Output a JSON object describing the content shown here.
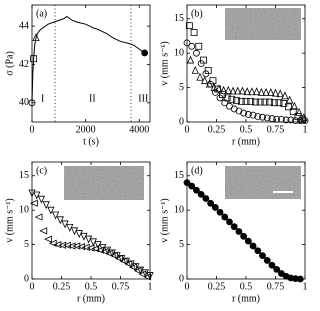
{
  "chart_data": [
    {
      "type": "line",
      "panel_label": "(a)",
      "xlabel": "t (s)",
      "ylabel": "σ (Pa)",
      "xlim": [
        0,
        4400
      ],
      "ylim": [
        39,
        45.1
      ],
      "xticks": [
        0,
        2000,
        4000
      ],
      "yticks": [
        40,
        42,
        44
      ],
      "vlines": [
        860,
        3690
      ],
      "annotations": [
        "I",
        "II",
        "III"
      ],
      "series": [
        {
          "marker": "none",
          "color": "#000000",
          "x": [
            0,
            30,
            60,
            100,
            150,
            200,
            300,
            400,
            500,
            600,
            800,
            1000,
            1200,
            1300,
            1500,
            1700,
            2000,
            2300,
            2500,
            2800,
            3000,
            3300,
            3600,
            3800,
            4000,
            4200
          ],
          "values": [
            40.0,
            41.5,
            42.3,
            43.0,
            43.4,
            43.6,
            43.8,
            43.9,
            44.0,
            44.1,
            44.2,
            44.3,
            44.4,
            44.5,
            44.3,
            44.2,
            44.1,
            43.9,
            43.8,
            43.6,
            43.4,
            43.2,
            43.1,
            43.0,
            42.8,
            42.6
          ]
        },
        {
          "marker": "circle",
          "color": "#000000",
          "x": [
            0
          ],
          "values": [
            40.0
          ]
        },
        {
          "marker": "square",
          "color": "#000000",
          "x": [
            60
          ],
          "values": [
            42.3
          ]
        },
        {
          "marker": "triangle-up",
          "color": "#000000",
          "x": [
            150
          ],
          "values": [
            43.4
          ]
        },
        {
          "marker": "filled-circle",
          "color": "#000000",
          "x": [
            4200
          ],
          "values": [
            42.6
          ]
        }
      ]
    },
    {
      "type": "scatter",
      "panel_label": "(b)",
      "xlabel": "r (mm)",
      "ylabel": "v (mm s⁻¹)",
      "xlim": [
        0,
        1
      ],
      "ylim": [
        0,
        17
      ],
      "xticks": [
        0,
        0.25,
        0.5,
        0.75,
        1
      ],
      "yticks": [
        0,
        5,
        10,
        15
      ],
      "series": [
        {
          "marker": "circle",
          "color": "#000000",
          "x": [
            0,
            0.04,
            0.08,
            0.12,
            0.16,
            0.2,
            0.24,
            0.28,
            0.32,
            0.36,
            0.4,
            0.44,
            0.48,
            0.52,
            0.56,
            0.6,
            0.64,
            0.68,
            0.72,
            0.76,
            0.8,
            0.84,
            0.88,
            0.92,
            0.96,
            1
          ],
          "values": [
            11.5,
            11,
            10,
            8.5,
            7,
            5.5,
            4.3,
            3.5,
            2.8,
            2.3,
            1.9,
            1.6,
            1.3,
            1.1,
            1.0,
            0.8,
            0.7,
            0.6,
            0.5,
            0.4,
            0.4,
            0.3,
            0.3,
            0.2,
            0.2,
            0.2
          ]
        },
        {
          "marker": "square",
          "color": "#000000",
          "x": [
            0.02,
            0.06,
            0.1,
            0.14,
            0.18,
            0.22,
            0.26,
            0.3,
            0.34,
            0.38,
            0.42,
            0.46,
            0.5,
            0.54,
            0.58,
            0.62,
            0.66,
            0.7,
            0.74,
            0.78,
            0.82,
            0.86,
            0.9,
            0.94,
            0.98
          ],
          "values": [
            14,
            13,
            11,
            9,
            7.5,
            6,
            4.8,
            4,
            3.5,
            3.3,
            3.1,
            3.0,
            3.0,
            3.0,
            2.9,
            2.9,
            2.9,
            2.9,
            2.8,
            2.8,
            2.7,
            2.2,
            1.5,
            0.8,
            0.3
          ]
        },
        {
          "marker": "triangle-up",
          "color": "#000000",
          "x": [
            0.03,
            0.07,
            0.11,
            0.15,
            0.19,
            0.23,
            0.27,
            0.31,
            0.35,
            0.39,
            0.43,
            0.47,
            0.51,
            0.55,
            0.59,
            0.63,
            0.67,
            0.71,
            0.75,
            0.79,
            0.83,
            0.87,
            0.91,
            0.95,
            0.99
          ],
          "values": [
            9,
            7.5,
            6.5,
            6,
            5.5,
            5,
            4.8,
            4.6,
            4.6,
            4.5,
            4.5,
            4.5,
            4.4,
            4.4,
            4.4,
            4.3,
            4.3,
            4.3,
            4.2,
            4.1,
            3.8,
            3.2,
            2.3,
            1.4,
            0.6
          ]
        }
      ]
    },
    {
      "type": "scatter",
      "panel_label": "(c)",
      "xlabel": "r (mm)",
      "ylabel": "v (mm s⁻¹)",
      "xlim": [
        0,
        1
      ],
      "ylim": [
        0,
        17
      ],
      "xticks": [
        0,
        0.25,
        0.5,
        0.75,
        1
      ],
      "yticks": [
        0,
        5,
        10,
        15
      ],
      "series": [
        {
          "marker": "triangle-down",
          "color": "#000000",
          "x": [
            0,
            0.04,
            0.08,
            0.12,
            0.16,
            0.2,
            0.24,
            0.28,
            0.32,
            0.36,
            0.4,
            0.44,
            0.48,
            0.52,
            0.56,
            0.6,
            0.64,
            0.68,
            0.72,
            0.76,
            0.8,
            0.84,
            0.88,
            0.92,
            0.96,
            1
          ],
          "values": [
            12.5,
            12.2,
            11.6,
            10.8,
            10,
            9.3,
            8.6,
            8.0,
            7.5,
            7.0,
            6.6,
            6.2,
            5.8,
            5.4,
            5.0,
            4.6,
            4.2,
            3.8,
            3.4,
            3.0,
            2.6,
            2.2,
            1.8,
            1.3,
            0.9,
            0.5
          ]
        },
        {
          "marker": "triangle-left",
          "color": "#000000",
          "x": [
            0.02,
            0.06,
            0.1,
            0.14,
            0.18,
            0.22,
            0.26,
            0.3,
            0.34,
            0.38,
            0.42,
            0.46,
            0.5,
            0.54,
            0.58,
            0.62,
            0.66,
            0.7,
            0.74,
            0.78,
            0.82,
            0.86,
            0.9,
            0.94,
            0.98
          ],
          "values": [
            11,
            9,
            7,
            5.8,
            5.2,
            5,
            4.9,
            4.9,
            4.8,
            4.8,
            4.7,
            4.6,
            4.5,
            4.4,
            4.2,
            4.0,
            3.7,
            3.4,
            3.0,
            2.6,
            2.2,
            1.7,
            1.2,
            0.7,
            0.3
          ]
        }
      ]
    },
    {
      "type": "scatter",
      "panel_label": "(d)",
      "xlabel": "r (mm)",
      "ylabel": "v (mm s⁻¹)",
      "xlim": [
        0,
        1
      ],
      "ylim": [
        0,
        17
      ],
      "xticks": [
        0,
        0.25,
        0.5,
        0.75,
        1
      ],
      "yticks": [
        0,
        5,
        10,
        15
      ],
      "series": [
        {
          "marker": "filled-circle",
          "color": "#000000",
          "x": [
            0,
            0.04,
            0.08,
            0.12,
            0.16,
            0.2,
            0.24,
            0.28,
            0.32,
            0.36,
            0.4,
            0.44,
            0.48,
            0.52,
            0.56,
            0.6,
            0.64,
            0.68,
            0.72,
            0.76,
            0.8,
            0.84,
            0.88,
            0.92,
            0.96
          ],
          "values": [
            14,
            13.5,
            12.9,
            12.3,
            11.7,
            11.0,
            10.4,
            9.7,
            9.0,
            8.3,
            7.6,
            6.9,
            6.2,
            5.5,
            4.8,
            4.1,
            3.4,
            2.7,
            2.0,
            1.4,
            0.8,
            0.4,
            0.15,
            0.05,
            0
          ]
        }
      ]
    }
  ]
}
